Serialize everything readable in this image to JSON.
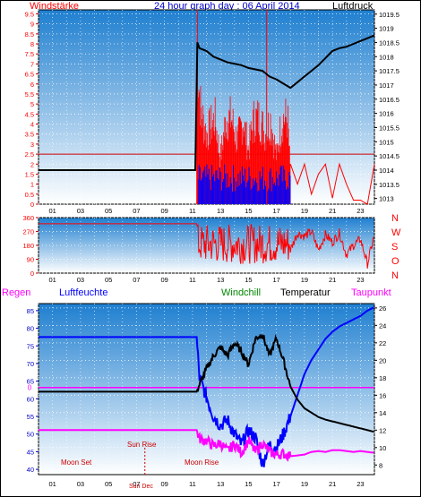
{
  "header": {
    "left": "Windstärke",
    "center": "24 hour graph day : 06 April 2014",
    "right": "Luftdruck"
  },
  "colors": {
    "wind": "#ff0000",
    "gust": "#0000ff",
    "pressure": "#000000",
    "humidity": "#0000ff",
    "temperature": "#000000",
    "dewpoint": "#ff00ff",
    "rain": "#ff00ff",
    "panel_top": "#1f7fd0",
    "panel_bottom": "#ffffff"
  },
  "x_ticks": [
    "01",
    "03",
    "05",
    "07",
    "09",
    "11",
    "13",
    "15",
    "17",
    "19",
    "21",
    "23"
  ],
  "chart_data": [
    {
      "type": "line",
      "title": "24 hour graph day : 06 April 2014",
      "left_axis_label": "Windstärke",
      "right_axis_label": "Luftdruck",
      "left_ticks": [
        "0",
        "0.5",
        "1",
        "1.5",
        "2",
        "2.5",
        "3",
        "3.5",
        "4",
        "4.5",
        "5",
        "5.5",
        "6",
        "6.5",
        "7",
        "7.5",
        "8",
        "8.5",
        "9",
        "9.5"
      ],
      "right_ticks": [
        "1013",
        "1013.5",
        "1014",
        "1014.5",
        "1015",
        "1015.5",
        "1016",
        "1016.5",
        "1017",
        "1017.5",
        "1018",
        "1018.5",
        "1019",
        "1019.5"
      ],
      "ylim_left": [
        0,
        9.7
      ],
      "ylim_right": [
        1012.8,
        1019.65
      ],
      "xlim": [
        0,
        24
      ],
      "series": [
        {
          "name": "Luftdruck",
          "axis": "right",
          "x": [
            0,
            11.2,
            11.3,
            11.35,
            11.5,
            12,
            12.5,
            13,
            13.5,
            14,
            14.5,
            15,
            15.5,
            16,
            16.5,
            17,
            17.5,
            18,
            18.5,
            19,
            19.5,
            20,
            20.5,
            21,
            21.5,
            22,
            22.5,
            23,
            23.5,
            24
          ],
          "y": [
            1014.0,
            1014.0,
            1017.0,
            1018.5,
            1018.3,
            1018.2,
            1018.0,
            1017.9,
            1017.8,
            1017.75,
            1017.7,
            1017.6,
            1017.55,
            1017.5,
            1017.3,
            1017.2,
            1017.05,
            1016.9,
            1017.1,
            1017.3,
            1017.5,
            1017.7,
            1017.95,
            1018.2,
            1018.3,
            1018.35,
            1018.45,
            1018.55,
            1018.65,
            1018.75
          ]
        },
        {
          "name": "Windstärke (Böen)",
          "axis": "left",
          "note_x_range": [
            11.4,
            24
          ],
          "x": [
            11.3,
            11.6,
            12,
            12.6,
            13,
            13.4,
            13.8,
            14.2,
            14.6,
            15,
            15.4,
            15.8,
            16.2,
            16.6,
            17,
            17.4,
            17.8,
            18,
            18.5,
            19,
            19.5,
            20,
            20.5,
            21,
            21.5,
            22,
            22.5,
            23,
            23.5,
            24
          ],
          "y": [
            9.5,
            6.0,
            4.5,
            5.5,
            3.0,
            5.5,
            5.5,
            4.0,
            5.5,
            3.5,
            5.5,
            5.5,
            4.5,
            5.5,
            3.0,
            5.5,
            5.5,
            2.0,
            1.0,
            2.0,
            0.5,
            1.5,
            2.0,
            0.3,
            2.0,
            1.0,
            0.2,
            0.2,
            0.0,
            2.0
          ]
        },
        {
          "name": "Windstärke (Mittel)",
          "axis": "left",
          "x": [
            11.4,
            12,
            13,
            14,
            15,
            16,
            17,
            18,
            18.5
          ],
          "y": [
            2.0,
            2.0,
            2.0,
            2.0,
            2.0,
            2.0,
            2.0,
            2.0,
            0.0
          ]
        }
      ]
    },
    {
      "type": "line",
      "right_axis_labels": [
        "N",
        "W",
        "S",
        "O",
        "N"
      ],
      "left_ticks": [
        "0",
        "90",
        "180",
        "270",
        "360"
      ],
      "ylim": [
        0,
        360
      ],
      "xlim": [
        0,
        24
      ],
      "series": [
        {
          "name": "Windrichtung",
          "x": [
            0,
            11.3,
            11.5,
            12,
            12.5,
            13,
            13.5,
            14,
            14.5,
            15,
            15.5,
            16,
            16.5,
            17,
            17.5,
            18,
            18.5,
            19,
            19.5,
            20,
            20.5,
            21,
            21.5,
            22,
            22.5,
            23,
            23.5,
            24
          ],
          "y": [
            320,
            320,
            260,
            90,
            300,
            70,
            310,
            100,
            280,
            60,
            320,
            120,
            300,
            80,
            290,
            150,
            260,
            240,
            270,
            150,
            250,
            200,
            260,
            120,
            180,
            220,
            60,
            250
          ]
        }
      ]
    },
    {
      "type": "line",
      "labels": {
        "rain": "Regen",
        "humidity": "Luftfeuchte",
        "windchill": "Windchill",
        "temperature": "Temperatur",
        "dewpoint": "Taupunkt"
      },
      "left_ticks": [
        "40",
        "45",
        "50",
        "55",
        "60",
        "65",
        "70",
        "75",
        "80",
        "85"
      ],
      "right_ticks": [
        "8",
        "10",
        "12",
        "14",
        "16",
        "18",
        "20",
        "22",
        "24",
        "26"
      ],
      "rain_label": "0",
      "annotations": [
        "Moon Set",
        "Sun Rise",
        "Moon Rise",
        "Sun Dec"
      ],
      "ylim_left": [
        38.5,
        87
      ],
      "ylim_right": [
        6.9,
        26.5
      ],
      "xlim": [
        0,
        24
      ],
      "series": [
        {
          "name": "Luftfeuchte",
          "axis": "left",
          "x": [
            0,
            11.3,
            11.5,
            12,
            12.5,
            13,
            13.5,
            14,
            14.5,
            15,
            15.5,
            16,
            16.5,
            17,
            17.5,
            18,
            18.5,
            19,
            19.5,
            20,
            20.5,
            21,
            21.5,
            22,
            22.5,
            23,
            23.5,
            24
          ],
          "y": [
            77.5,
            77.5,
            66.0,
            60.5,
            55.0,
            52.5,
            54.0,
            50.0,
            47.0,
            51.0,
            49.0,
            41.5,
            47.0,
            46.0,
            50.0,
            55.0,
            61.0,
            67.0,
            71.0,
            74.0,
            77.0,
            79.0,
            80.5,
            81.5,
            82.5,
            83.5,
            85.0,
            86.0
          ]
        },
        {
          "name": "Temperatur",
          "axis": "right",
          "x": [
            0,
            11.3,
            11.5,
            12,
            12.5,
            13,
            13.5,
            14,
            14.5,
            15,
            15.5,
            16,
            16.5,
            17,
            17.5,
            18,
            18.5,
            19,
            19.5,
            20,
            20.5,
            21,
            21.5,
            22,
            22.5,
            23,
            23.5,
            24
          ],
          "y": [
            16.4,
            16.4,
            17.2,
            19.0,
            20.5,
            21.5,
            20.5,
            22.0,
            21.0,
            19.5,
            22.5,
            23.0,
            20.5,
            22.5,
            20.0,
            17.0,
            15.5,
            14.5,
            14.0,
            13.5,
            13.2,
            13.0,
            12.8,
            12.6,
            12.4,
            12.2,
            12.0,
            11.8
          ]
        },
        {
          "name": "Taupunkt",
          "axis": "right",
          "x": [
            0,
            11.3,
            11.5,
            12,
            12.5,
            13,
            13.5,
            14,
            14.5,
            15,
            15.5,
            16,
            16.5,
            17,
            17.5,
            18,
            18.5,
            19,
            19.5,
            20,
            20.5,
            21,
            21.5,
            22,
            22.5,
            23,
            23.5,
            24
          ],
          "y": [
            12.0,
            12.0,
            11.0,
            10.8,
            10.2,
            10.5,
            9.6,
            10.4,
            9.4,
            10.8,
            9.5,
            10.5,
            9.5,
            9.2,
            9.3,
            9.0,
            9.1,
            9.2,
            9.5,
            9.6,
            9.5,
            9.7,
            9.7,
            9.6,
            9.5,
            9.6,
            9.5,
            9.4
          ]
        },
        {
          "name": "Regen",
          "axis": "left",
          "x": [
            0,
            24
          ],
          "y": [
            63.2,
            63.2
          ]
        }
      ]
    }
  ]
}
